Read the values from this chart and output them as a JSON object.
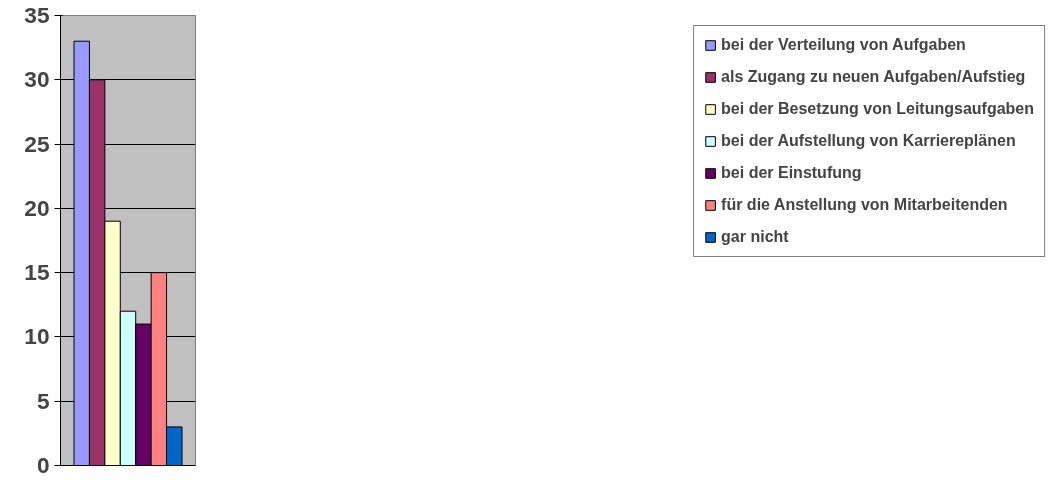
{
  "chart_data": {
    "type": "bar",
    "categories": [
      null
    ],
    "series": [
      {
        "name": "bei der Verteilung von Aufgaben",
        "color": "#9999ff",
        "values": [
          33
        ]
      },
      {
        "name": "als Zugang zu neuen Aufgaben/Aufstieg",
        "color": "#993366",
        "values": [
          30
        ]
      },
      {
        "name": "bei der Besetzung von Leitungsaufgaben",
        "color": "#ffffcc",
        "values": [
          19
        ]
      },
      {
        "name": "bei der Aufstellung von Karriereplänen",
        "color": "#ccffff",
        "values": [
          12
        ]
      },
      {
        "name": "bei der Einstufung",
        "color": "#660066",
        "values": [
          11
        ]
      },
      {
        "name": "für die Anstellung von Mitarbeitenden",
        "color": "#ff8080",
        "values": [
          15
        ]
      },
      {
        "name": "gar nicht",
        "color": "#0066cc",
        "values": [
          3
        ]
      }
    ],
    "ylim": [
      0,
      35
    ],
    "yticks": [
      0,
      5,
      10,
      15,
      20,
      25,
      30,
      35
    ],
    "grid": "y",
    "legend": "right"
  }
}
